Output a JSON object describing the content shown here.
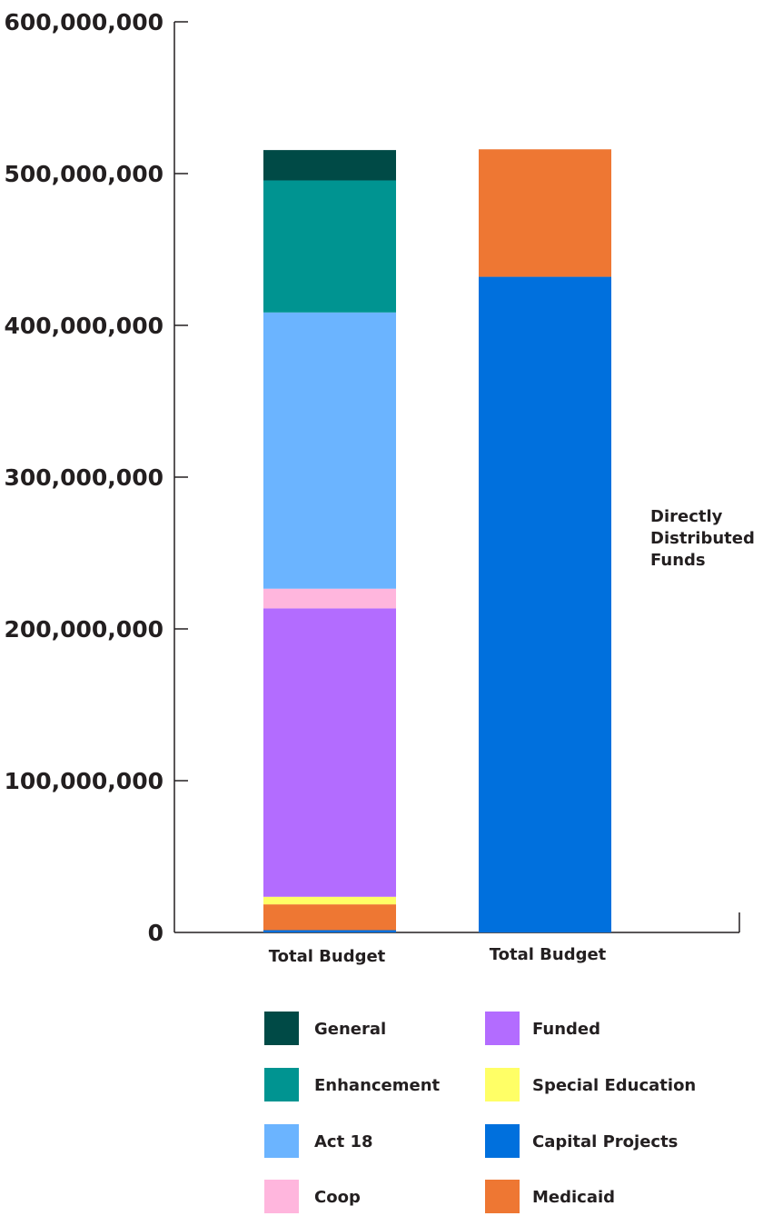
{
  "chart_data": {
    "type": "bar",
    "stacked": true,
    "categories": [
      "Total Budget",
      "Total Budget"
    ],
    "ylim": [
      0,
      600000000
    ],
    "yticks": [
      0,
      100000000,
      200000000,
      300000000,
      400000000,
      500000000,
      600000000
    ],
    "ytick_labels": [
      "0",
      "100,000,000",
      "200,000,000",
      "300,000,000",
      "400,000,000",
      "500,000,000",
      "600,000,000"
    ],
    "grid": false,
    "legend_placement": "bottom",
    "series": [
      {
        "name": "Capital Projects",
        "color": "#0070dd",
        "values": [
          1500000,
          432000000
        ]
      },
      {
        "name": "Medicaid",
        "color": "#ee7733",
        "values": [
          17000000,
          84000000
        ]
      },
      {
        "name": "Special Education",
        "color": "#ffff66",
        "values": [
          5000000,
          0
        ]
      },
      {
        "name": "Funded",
        "color": "#b36cff",
        "values": [
          190000000,
          0
        ]
      },
      {
        "name": "Coop",
        "color": "#ffb6dd",
        "values": [
          13000000,
          0
        ]
      },
      {
        "name": "Act 18",
        "color": "#6bb4ff",
        "values": [
          182000000,
          0
        ]
      },
      {
        "name": "Enhancement",
        "color": "#009491",
        "values": [
          87000000,
          0
        ]
      },
      {
        "name": "General",
        "color": "#004a46",
        "values": [
          20000000,
          0
        ]
      }
    ],
    "annotation": "Directly Distributed Funds"
  },
  "legend": {
    "left": [
      {
        "name": "General",
        "color": "#004a46"
      },
      {
        "name": "Enhancement",
        "color": "#009491"
      },
      {
        "name": "Act 18",
        "color": "#6bb4ff"
      },
      {
        "name": "Coop",
        "color": "#ffb6dd"
      }
    ],
    "right": [
      {
        "name": "Funded",
        "color": "#b36cff"
      },
      {
        "name": "Special Education",
        "color": "#ffff66"
      },
      {
        "name": "Capital Projects",
        "color": "#0070dd"
      },
      {
        "name": "Medicaid",
        "color": "#ee7733"
      }
    ]
  }
}
